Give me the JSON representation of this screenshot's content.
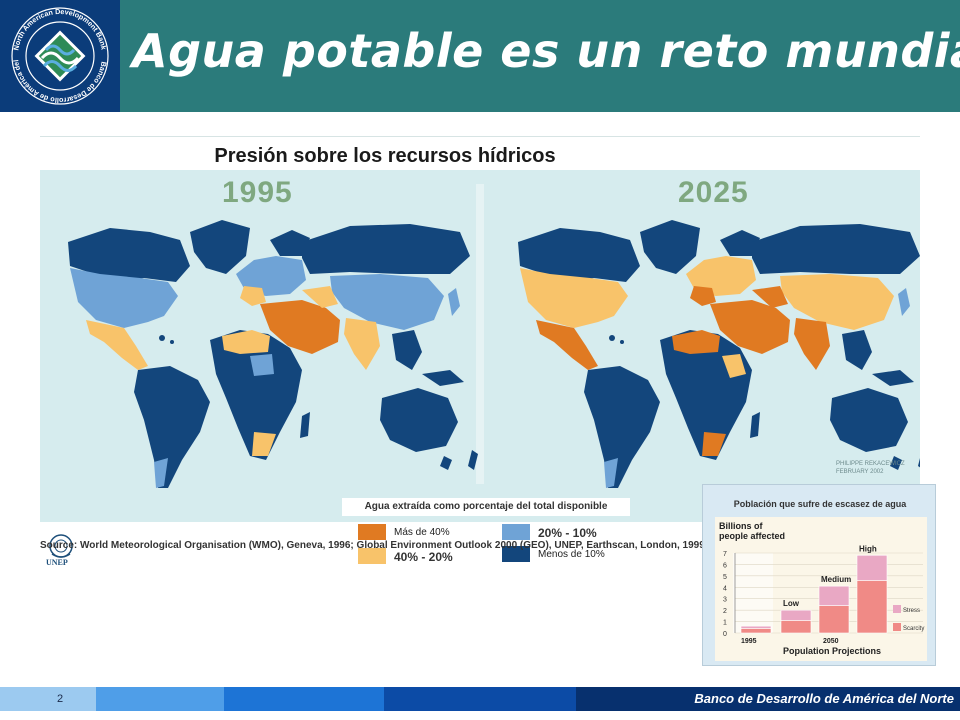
{
  "header": {
    "title": "Agua potable es un reto mundial",
    "logo_text_top": "North American Development Bank",
    "logo_text_bottom": "Banco de Desarrollo de América del Norte"
  },
  "figure": {
    "title": "Presión sobre los recursos hídricos",
    "years": [
      "1995",
      "2025"
    ],
    "credit_line1": "PHILIPPE REKACEWICZ",
    "credit_line2": "FEBRUARY 2002",
    "legend": {
      "caption": "Agua extraída como porcentaje del total disponible",
      "items": [
        {
          "label": "Más de 40%",
          "color": "#e07a22"
        },
        {
          "label": "40% - 20%",
          "color": "#f8c36a"
        },
        {
          "label": "20% - 10%",
          "color": "#6fa3d6"
        },
        {
          "label": "Menos de 10%",
          "color": "#13467c"
        }
      ]
    },
    "unep_label": "UNEP",
    "source": "Source: World Meteorological Organisation (WMO), Geneva, 1996; Global Environment Outlook 2000 (GEO), UNEP, Earthscan, London, 1999."
  },
  "inset": {
    "title": "Población que sufre de escasez de agua",
    "chart_data": {
      "type": "bar",
      "ylabel_line1": "Billions of",
      "ylabel_line2": "people affected",
      "y_ticks": [
        "0",
        "1",
        "2",
        "3",
        "4",
        "5",
        "6",
        "7"
      ],
      "ylim": [
        0,
        7
      ],
      "categories": [
        "1995",
        "Low",
        "Medium",
        "High"
      ],
      "series": [
        {
          "name": "Scarcity",
          "values": [
            0.4,
            1.1,
            2.4,
            4.6
          ],
          "color": "#f08a86"
        },
        {
          "name": "Stress",
          "values": [
            0.2,
            0.9,
            1.7,
            2.2
          ],
          "color": "#e9a8c4"
        }
      ],
      "xlabel_year": "1995",
      "xlabel_year2": "2050",
      "xlabel": "Population Projections"
    }
  },
  "footer": {
    "page_number": "2",
    "org_name": "Banco de Desarrollo de América del Norte"
  }
}
